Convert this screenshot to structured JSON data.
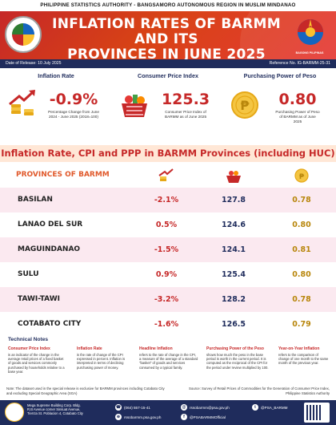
{
  "agency_line": "PHILIPPINE STATISTICS AUTHORITY - BANGSAMORO AUTONOMOUS REGION IN MUSLIM MINDANAO",
  "banner": {
    "title_line1": "INFLATION RATES OF BARMM AND ITS",
    "title_line2": "PROVINCES IN JUNE 2025",
    "logo_text": "BAGONG PILIPINAS"
  },
  "meta": {
    "release_date": "Date of Release: 10 July 2025",
    "reference_no": "Reference No. IG-BARMM-25-31"
  },
  "kpis": {
    "inflation": {
      "label": "Inflation Rate",
      "value": "-0.9%",
      "desc": "Percentage Change from June 2024 - June 2025 (2018=100)"
    },
    "cpi": {
      "label": "Consumer Price Index",
      "value": "125.3",
      "desc": "Consumer Price Index of BARMM as of June 2025"
    },
    "ppp": {
      "label": "Purchasing Power of Peso",
      "value": "0.80",
      "desc": "Purchasing Power of Peso of BARMM as of June 2025"
    }
  },
  "section_title": "Inflation Rate, CPI and PPP in BARMM Provinces (including HUC)",
  "table": {
    "header": "PROVINCES OF BARMM",
    "rows": [
      {
        "province": "BASILAN",
        "inflation": "-2.1%",
        "cpi": "127.8",
        "ppp": "0.78"
      },
      {
        "province": "LANAO DEL SUR",
        "inflation": "0.5%",
        "cpi": "124.6",
        "ppp": "0.80"
      },
      {
        "province": "MAGUINDANAO",
        "inflation": "-1.5%",
        "cpi": "124.1",
        "ppp": "0.81"
      },
      {
        "province": "SULU",
        "inflation": "0.9%",
        "cpi": "125.4",
        "ppp": "0.80"
      },
      {
        "province": "TAWI-TAWI",
        "inflation": "-3.2%",
        "cpi": "128.2",
        "ppp": "0.78"
      },
      {
        "province": "COTABATO CITY",
        "inflation": "-1.6%",
        "cpi": "126.5",
        "ppp": "0.79"
      }
    ]
  },
  "notes": {
    "title": "Technical Notes",
    "items": [
      {
        "head": "Consumer Price Index",
        "text": "is an indicator of the change in the average retail prices of a fixed basket of goods and services commonly purchased by households relative to a base year."
      },
      {
        "head": "Inflation Rate",
        "text": "is the rate of change of the CPI expressed in percent. Inflation is interpreted in terms of declining purchasing power of money."
      },
      {
        "head": "Headline Inflation",
        "text": "refers to the rate of change in the CPI, a measure of the average of a standard \"basket\" of goods and services consumed by a typical family."
      },
      {
        "head": "Purchasing Power of the Peso",
        "text": "shows how much the peso in the base period is worth in the current period. It is computed as the reciprocal of the CPI for the period under review multiplied by 100."
      },
      {
        "head": "Year-on-Year Inflation",
        "text": "refers to the comparison of change of one month to the same month of the previous year."
      }
    ]
  },
  "footnote": {
    "left": "Note: The dataset used in the special release is exclusive for BARMM provinces including Cotabato City and excluding Special Geographic Area (SGA)",
    "right": "Source: Survey of Retail Prices of Commodities for the Generation of Consumer Price Index, Philippine Statistics Authority"
  },
  "footer": {
    "address": "Mega Supreme Building Corp. Bldg. R.B Avenue corner Sinsuat Avenue, Tierrza St. Poblacion 4, Cotabato City",
    "phone": "(064) 557-15-41",
    "email": "rssobarmm@psa.gov.ph",
    "web": "rssobarmm.psa.gov.ph",
    "facebook": "@PSABARMMOfficial",
    "twitter": "@PSA_BARMM"
  },
  "colors": {
    "banner": "#d84315",
    "accent_red": "#c62828",
    "navy": "#1f2c5c",
    "gold": "#fbc02d",
    "row_tint": "#fbe9f0"
  }
}
